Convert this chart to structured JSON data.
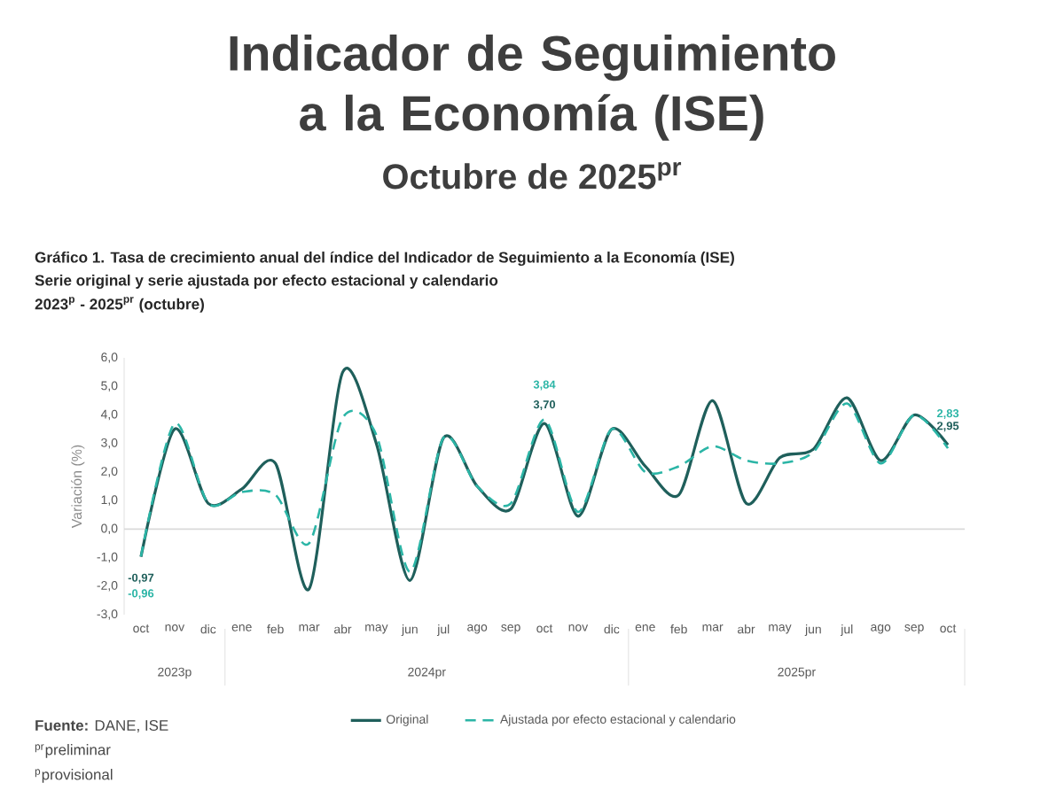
{
  "chart_data": {
    "type": "line",
    "title": "Indicador de Seguimiento a la Economía (ISE)",
    "subtitle": "Octubre de 2025$^{pr}$",
    "ylabel": "Variación (%)",
    "categories": [
      "oct",
      "nov",
      "dic",
      "ene",
      "feb",
      "mar",
      "abr",
      "may",
      "jun",
      "jul",
      "ago",
      "sep",
      "oct",
      "nov",
      "dic",
      "ene",
      "feb",
      "mar",
      "abr",
      "may",
      "jun",
      "jul",
      "ago",
      "sep",
      "oct"
    ],
    "series": [
      {
        "name": "Original",
        "color": "#1f5f5b",
        "line_style": "solid",
        "values": [
          -0.97,
          3.5,
          0.9,
          1.4,
          2.3,
          -2.1,
          5.5,
          3.0,
          -1.8,
          3.2,
          1.5,
          0.7,
          3.7,
          0.45,
          3.5,
          2.2,
          1.2,
          4.5,
          0.9,
          2.5,
          2.8,
          4.6,
          2.4,
          4.0,
          2.95
        ],
        "value_labels": [
          "-0,97",
          null,
          null,
          null,
          null,
          null,
          null,
          null,
          null,
          null,
          null,
          null,
          "3,70",
          null,
          null,
          null,
          null,
          null,
          null,
          null,
          null,
          null,
          null,
          null,
          "2,95"
        ]
      },
      {
        "name": "Ajustada por efecto estacional y calendario",
        "color": "#2bb5a6",
        "line_style": "dashed",
        "values": [
          -0.96,
          3.7,
          0.9,
          1.3,
          1.2,
          -0.5,
          3.9,
          3.3,
          -1.5,
          3.2,
          1.5,
          0.9,
          3.84,
          0.6,
          3.5,
          2.0,
          2.2,
          2.9,
          2.4,
          2.3,
          2.7,
          4.4,
          2.3,
          4.0,
          2.83
        ],
        "value_labels": [
          "-0,96",
          null,
          null,
          null,
          null,
          null,
          null,
          null,
          null,
          null,
          null,
          null,
          "3,84",
          null,
          null,
          null,
          null,
          null,
          null,
          null,
          null,
          null,
          null,
          null,
          "2,83"
        ]
      }
    ],
    "ylim": [
      -3,
      6
    ],
    "yticks": [
      {
        "value": -3,
        "label": "-3,0"
      },
      {
        "value": -2,
        "label": "-2,0"
      },
      {
        "value": -1,
        "label": "-1,0"
      },
      {
        "value": 0,
        "label": "0,0"
      },
      {
        "value": 1,
        "label": "1,0"
      },
      {
        "value": 2,
        "label": "2,0"
      },
      {
        "value": 3,
        "label": "3,0"
      },
      {
        "value": 4,
        "label": "4,0"
      },
      {
        "value": 5,
        "label": "5,0"
      },
      {
        "value": 6,
        "label": "6,0"
      }
    ],
    "ref_lines": [
      {
        "axis": "y",
        "value": 0,
        "color": "#d9d9d9"
      }
    ],
    "legend": "bottom",
    "marker": "none",
    "annotations": [
      "Gráfico 1. Tasa de crecimiento anual del índice del Indicador de Seguimiento a la Economía (ISE)",
      "Serie original y serie ajustada por efecto estacional y calendario",
      "2023$^{p}$ - 2025$^{pr}$ (octubre)",
      "2023p",
      "2024pr",
      "2025pr",
      "**Fuente:** DANE, ISE",
      "$^{pr}$preliminar",
      "$^{p}$provisional"
    ]
  }
}
